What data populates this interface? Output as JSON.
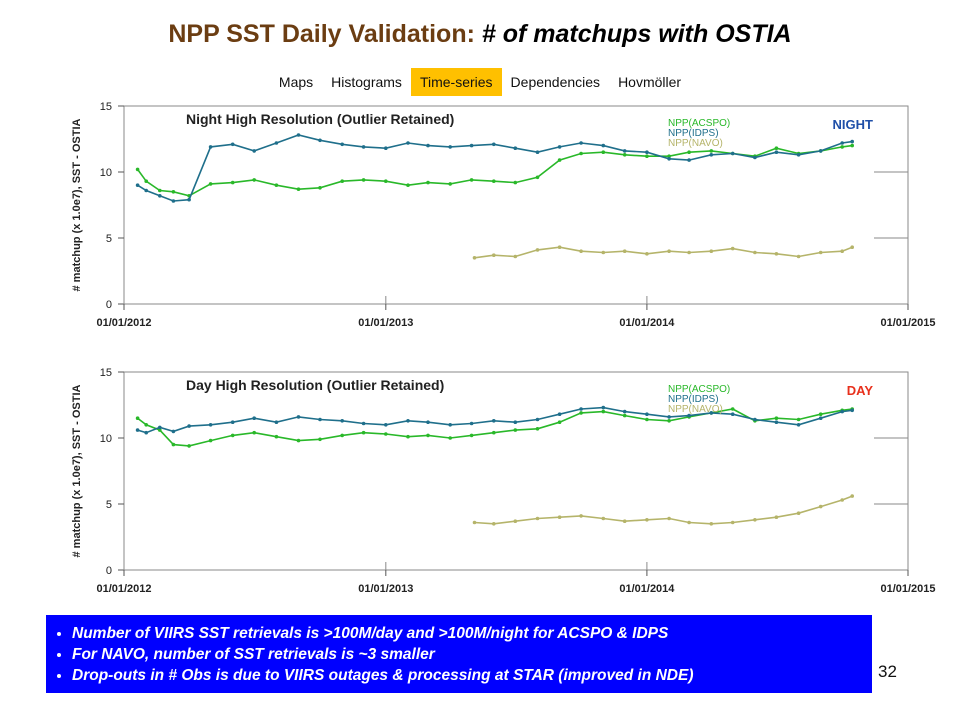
{
  "slide": {
    "title_main": "NPP SST Daily Validation: ",
    "title_sub": "# of matchups with OSTIA",
    "page_number": "32"
  },
  "nav": {
    "tabs": [
      {
        "label": "Maps",
        "active": false
      },
      {
        "label": "Histograms",
        "active": false
      },
      {
        "label": "Time-series",
        "active": true
      },
      {
        "label": "Dependencies",
        "active": false
      },
      {
        "label": "Hovmöller",
        "active": false
      }
    ]
  },
  "notes": [
    "Number of VIIRS SST retrievals is >100M/day and >100M/night for ACSPO & IDPS",
    "For NAVO, number of SST retrievals is ~3 smaller",
    "Drop-outs in # Obs is due to VIIRS outages & processing at STAR (improved in NDE)"
  ],
  "chart_data": [
    {
      "type": "line",
      "title": "Night High Resolution (Outlier Retained)",
      "corner_label": "NIGHT",
      "corner_label_color": "#1f4fa8",
      "ylabel": "# matchup (x 1.0e7),  SST - OSTIA",
      "xlabel": "",
      "ylim": [
        0,
        15
      ],
      "yticks": [
        0,
        5,
        10,
        15
      ],
      "xlim": [
        "2012-01-01",
        "2015-01-01"
      ],
      "xticks": [
        "01/01/2012",
        "01/01/2013",
        "01/01/2014",
        "01/01/2015"
      ],
      "grid": true,
      "legend_position": "top-right",
      "series": [
        {
          "name": "NPP(ACSPO)",
          "color": "#29b829",
          "x": [
            "2012-01-20",
            "2012-02-01",
            "2012-02-20",
            "2012-03-10",
            "2012-04-01",
            "2012-05-01",
            "2012-06-01",
            "2012-07-01",
            "2012-08-01",
            "2012-09-01",
            "2012-10-01",
            "2012-11-01",
            "2012-12-01",
            "2013-01-01",
            "2013-02-01",
            "2013-03-01",
            "2013-04-01",
            "2013-05-01",
            "2013-06-01",
            "2013-07-01",
            "2013-08-01",
            "2013-09-01",
            "2013-10-01",
            "2013-11-01",
            "2013-12-01",
            "2014-01-01",
            "2014-02-01",
            "2014-03-01",
            "2014-04-01",
            "2014-05-01",
            "2014-06-01",
            "2014-07-01",
            "2014-08-01",
            "2014-09-01",
            "2014-10-01",
            "2014-10-15"
          ],
          "values": [
            10.2,
            9.3,
            8.6,
            8.5,
            8.2,
            9.1,
            9.2,
            9.4,
            9.0,
            8.7,
            8.8,
            9.3,
            9.4,
            9.3,
            9.0,
            9.2,
            9.1,
            9.4,
            9.3,
            9.2,
            9.6,
            10.9,
            11.4,
            11.5,
            11.3,
            11.2,
            11.2,
            11.5,
            11.6,
            11.4,
            11.2,
            11.8,
            11.4,
            11.6,
            11.9,
            12.0
          ]
        },
        {
          "name": "NPP(IDPS)",
          "color": "#1f6f8b",
          "x": [
            "2012-01-20",
            "2012-02-01",
            "2012-02-20",
            "2012-03-10",
            "2012-04-01",
            "2012-05-01",
            "2012-06-01",
            "2012-07-01",
            "2012-08-01",
            "2012-09-01",
            "2012-10-01",
            "2012-11-01",
            "2012-12-01",
            "2013-01-01",
            "2013-02-01",
            "2013-03-01",
            "2013-04-01",
            "2013-05-01",
            "2013-06-01",
            "2013-07-01",
            "2013-08-01",
            "2013-09-01",
            "2013-10-01",
            "2013-11-01",
            "2013-12-01",
            "2014-01-01",
            "2014-02-01",
            "2014-03-01",
            "2014-04-01",
            "2014-05-01",
            "2014-06-01",
            "2014-07-01",
            "2014-08-01",
            "2014-09-01",
            "2014-10-01",
            "2014-10-15"
          ],
          "values": [
            9.0,
            8.6,
            8.2,
            7.8,
            7.9,
            11.9,
            12.1,
            11.6,
            12.2,
            12.8,
            12.4,
            12.1,
            11.9,
            11.8,
            12.2,
            12.0,
            11.9,
            12.0,
            12.1,
            11.8,
            11.5,
            11.9,
            12.2,
            12.0,
            11.6,
            11.5,
            11.0,
            10.9,
            11.3,
            11.4,
            11.1,
            11.5,
            11.3,
            11.6,
            12.2,
            12.3
          ]
        },
        {
          "name": "NPP(NAVO)",
          "color": "#b5b46a",
          "x": [
            "2013-05-05",
            "2013-06-01",
            "2013-07-01",
            "2013-08-01",
            "2013-09-01",
            "2013-10-01",
            "2013-11-01",
            "2013-12-01",
            "2014-01-01",
            "2014-02-01",
            "2014-03-01",
            "2014-04-01",
            "2014-05-01",
            "2014-06-01",
            "2014-07-01",
            "2014-08-01",
            "2014-09-01",
            "2014-10-01",
            "2014-10-15"
          ],
          "values": [
            3.5,
            3.7,
            3.6,
            4.1,
            4.3,
            4.0,
            3.9,
            4.0,
            3.8,
            4.0,
            3.9,
            4.0,
            4.2,
            3.9,
            3.8,
            3.6,
            3.9,
            4.0,
            4.3
          ]
        }
      ]
    },
    {
      "type": "line",
      "title": "Day High Resolution (Outlier Retained)",
      "corner_label": "DAY",
      "corner_label_color": "#e8301c",
      "ylabel": "# matchup (x 1.0e7),  SST - OSTIA",
      "xlabel": "",
      "ylim": [
        0,
        15
      ],
      "yticks": [
        0,
        5,
        10,
        15
      ],
      "xlim": [
        "2012-01-01",
        "2015-01-01"
      ],
      "xticks": [
        "01/01/2012",
        "01/01/2013",
        "01/01/2014",
        "01/01/2015"
      ],
      "grid": true,
      "legend_position": "top-right",
      "series": [
        {
          "name": "NPP(ACSPO)",
          "color": "#29b829",
          "x": [
            "2012-01-20",
            "2012-02-01",
            "2012-02-20",
            "2012-03-10",
            "2012-04-01",
            "2012-05-01",
            "2012-06-01",
            "2012-07-01",
            "2012-08-01",
            "2012-09-01",
            "2012-10-01",
            "2012-11-01",
            "2012-12-01",
            "2013-01-01",
            "2013-02-01",
            "2013-03-01",
            "2013-04-01",
            "2013-05-01",
            "2013-06-01",
            "2013-07-01",
            "2013-08-01",
            "2013-09-01",
            "2013-10-01",
            "2013-11-01",
            "2013-12-01",
            "2014-01-01",
            "2014-02-01",
            "2014-03-01",
            "2014-04-01",
            "2014-05-01",
            "2014-06-01",
            "2014-07-01",
            "2014-08-01",
            "2014-09-01",
            "2014-10-01",
            "2014-10-15"
          ],
          "values": [
            11.5,
            11.0,
            10.6,
            9.5,
            9.4,
            9.8,
            10.2,
            10.4,
            10.1,
            9.8,
            9.9,
            10.2,
            10.4,
            10.3,
            10.1,
            10.2,
            10.0,
            10.2,
            10.4,
            10.6,
            10.7,
            11.2,
            11.9,
            12.0,
            11.7,
            11.4,
            11.3,
            11.6,
            11.9,
            12.2,
            11.3,
            11.5,
            11.4,
            11.8,
            12.1,
            12.2
          ]
        },
        {
          "name": "NPP(IDPS)",
          "color": "#1f6f8b",
          "x": [
            "2012-01-20",
            "2012-02-01",
            "2012-02-20",
            "2012-03-10",
            "2012-04-01",
            "2012-05-01",
            "2012-06-01",
            "2012-07-01",
            "2012-08-01",
            "2012-09-01",
            "2012-10-01",
            "2012-11-01",
            "2012-12-01",
            "2013-01-01",
            "2013-02-01",
            "2013-03-01",
            "2013-04-01",
            "2013-05-01",
            "2013-06-01",
            "2013-07-01",
            "2013-08-01",
            "2013-09-01",
            "2013-10-01",
            "2013-11-01",
            "2013-12-01",
            "2014-01-01",
            "2014-02-01",
            "2014-03-01",
            "2014-04-01",
            "2014-05-01",
            "2014-06-01",
            "2014-07-01",
            "2014-08-01",
            "2014-09-01",
            "2014-10-01",
            "2014-10-15"
          ],
          "values": [
            10.6,
            10.4,
            10.8,
            10.5,
            10.9,
            11.0,
            11.2,
            11.5,
            11.2,
            11.6,
            11.4,
            11.3,
            11.1,
            11.0,
            11.3,
            11.2,
            11.0,
            11.1,
            11.3,
            11.2,
            11.4,
            11.8,
            12.2,
            12.3,
            12.0,
            11.8,
            11.6,
            11.7,
            11.9,
            11.8,
            11.4,
            11.2,
            11.0,
            11.5,
            12.0,
            12.1
          ]
        },
        {
          "name": "NPP(NAVO)",
          "color": "#b5b46a",
          "x": [
            "2013-05-05",
            "2013-06-01",
            "2013-07-01",
            "2013-08-01",
            "2013-09-01",
            "2013-10-01",
            "2013-11-01",
            "2013-12-01",
            "2014-01-01",
            "2014-02-01",
            "2014-03-01",
            "2014-04-01",
            "2014-05-01",
            "2014-06-01",
            "2014-07-01",
            "2014-08-01",
            "2014-09-01",
            "2014-10-01",
            "2014-10-15"
          ],
          "values": [
            3.6,
            3.5,
            3.7,
            3.9,
            4.0,
            4.1,
            3.9,
            3.7,
            3.8,
            3.9,
            3.6,
            3.5,
            3.6,
            3.8,
            4.0,
            4.3,
            4.8,
            5.3,
            5.6
          ]
        }
      ]
    }
  ]
}
